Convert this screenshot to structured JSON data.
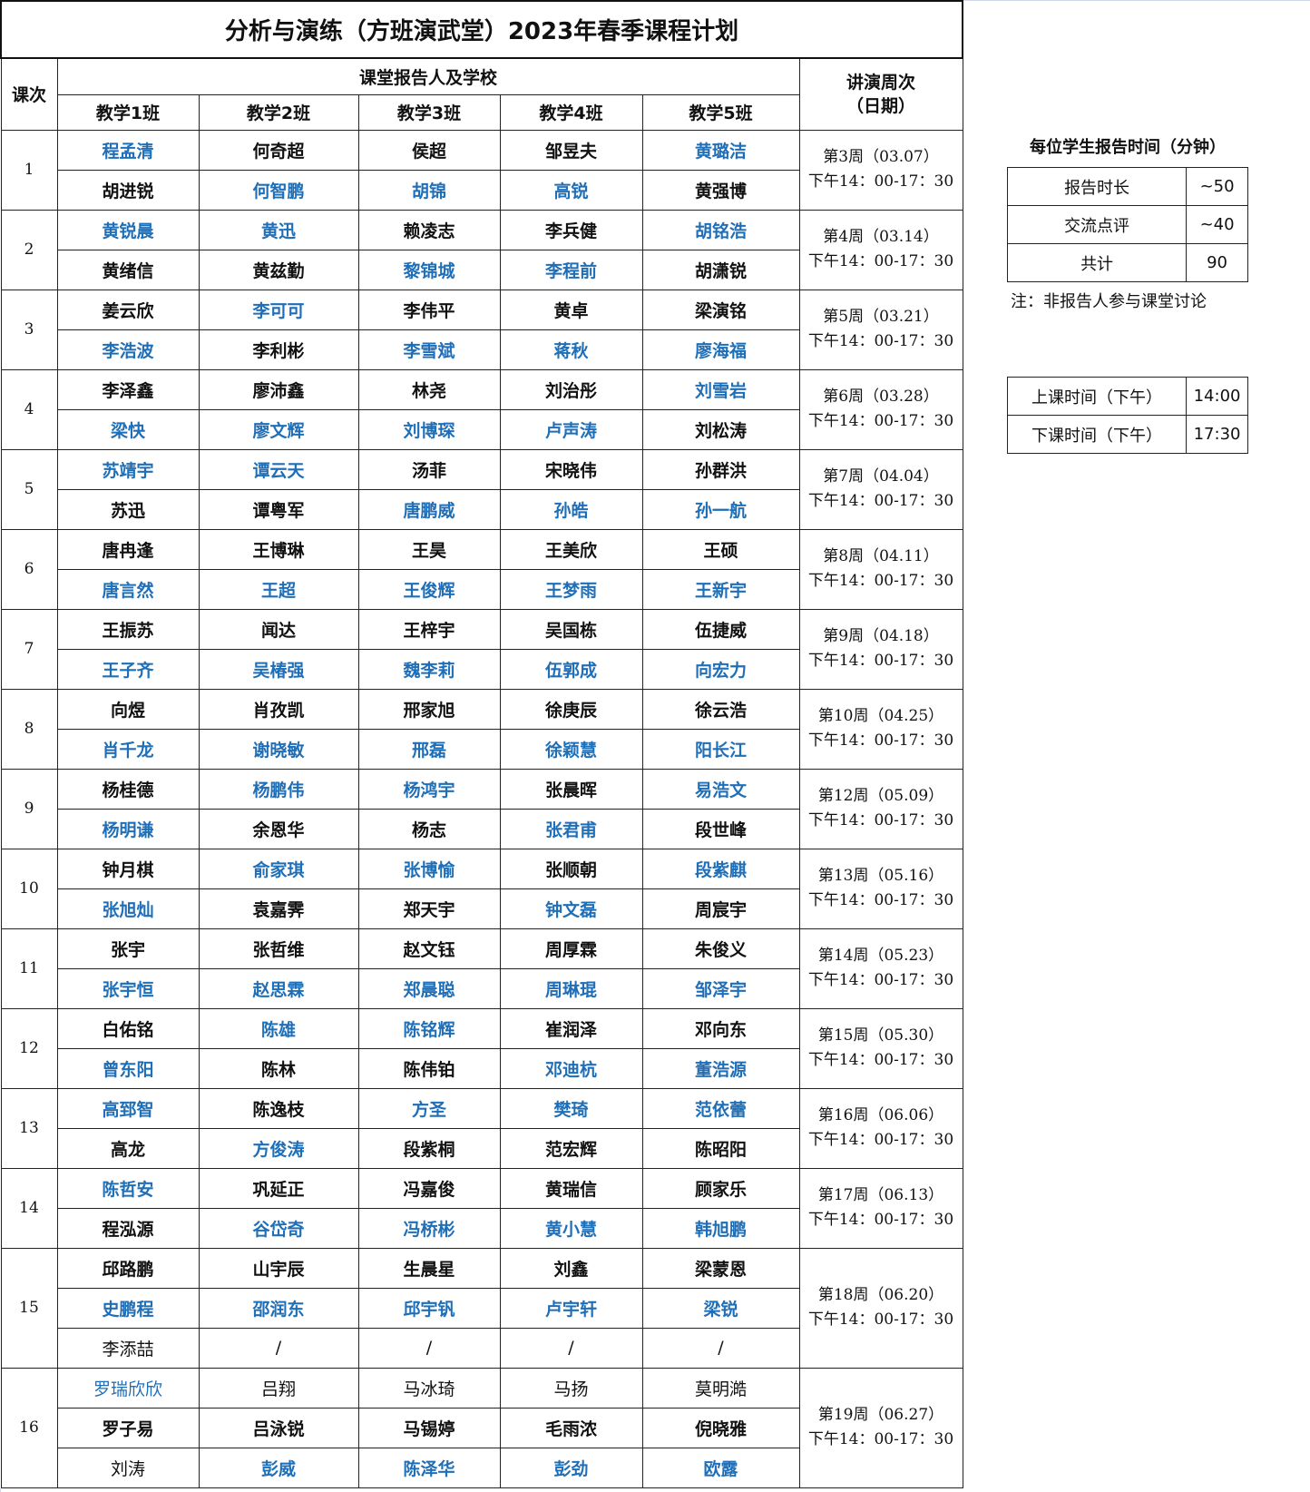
{
  "title": "分析与演练（方班演武堂）2023年春季课程计划",
  "headers": {
    "lesson": "课次",
    "reporters": "课堂报告人及学校",
    "week": "讲演周次\n（日期）",
    "classes": [
      "教学1班",
      "教学2班",
      "教学3班",
      "教学4班",
      "教学5班"
    ]
  },
  "colors": {
    "highlight": "#1f6fb8",
    "text": "#111111"
  },
  "lessons": [
    {
      "no": "1",
      "week": "第3周（03.07）",
      "time": "下午14：00-17：30",
      "rows": [
        [
          {
            "n": "程孟清",
            "c": "blue"
          },
          {
            "n": "何奇超"
          },
          {
            "n": "侯超"
          },
          {
            "n": "邹昱夫"
          },
          {
            "n": "黄璐洁",
            "c": "blue"
          }
        ],
        [
          {
            "n": "胡进锐"
          },
          {
            "n": "何智鹏",
            "c": "blue"
          },
          {
            "n": "胡锦",
            "c": "blue"
          },
          {
            "n": "高锐",
            "c": "blue"
          },
          {
            "n": "黄强博"
          }
        ]
      ]
    },
    {
      "no": "2",
      "week": "第4周（03.14）",
      "time": "下午14：00-17：30",
      "rows": [
        [
          {
            "n": "黄锐晨",
            "c": "blue"
          },
          {
            "n": "黄迅",
            "c": "blue"
          },
          {
            "n": "赖凌志"
          },
          {
            "n": "李兵健"
          },
          {
            "n": "胡铭浩",
            "c": "blue"
          }
        ],
        [
          {
            "n": "黄绪信"
          },
          {
            "n": "黄兹勤"
          },
          {
            "n": "黎锦城",
            "c": "blue"
          },
          {
            "n": "李程前",
            "c": "blue"
          },
          {
            "n": "胡潇锐"
          }
        ]
      ]
    },
    {
      "no": "3",
      "week": "第5周（03.21）",
      "time": "下午14：00-17：30",
      "rows": [
        [
          {
            "n": "姜云欣"
          },
          {
            "n": "李可可",
            "c": "blue"
          },
          {
            "n": "李伟平"
          },
          {
            "n": "黄卓"
          },
          {
            "n": "梁演铭"
          }
        ],
        [
          {
            "n": "李浩波",
            "c": "blue"
          },
          {
            "n": "李利彬"
          },
          {
            "n": "李雪斌",
            "c": "blue"
          },
          {
            "n": "蒋秋",
            "c": "blue"
          },
          {
            "n": "廖海福",
            "c": "blue"
          }
        ]
      ]
    },
    {
      "no": "4",
      "week": "第6周（03.28）",
      "time": "下午14：00-17：30",
      "rows": [
        [
          {
            "n": "李泽鑫"
          },
          {
            "n": "廖沛鑫"
          },
          {
            "n": "林尧"
          },
          {
            "n": "刘治彤"
          },
          {
            "n": "刘雪岩",
            "c": "blue"
          }
        ],
        [
          {
            "n": "梁快",
            "c": "blue"
          },
          {
            "n": "廖文辉",
            "c": "blue"
          },
          {
            "n": "刘博琛",
            "c": "blue"
          },
          {
            "n": "卢声涛",
            "c": "blue"
          },
          {
            "n": "刘松涛"
          }
        ]
      ]
    },
    {
      "no": "5",
      "week": "第7周（04.04）",
      "time": "下午14：00-17：30",
      "rows": [
        [
          {
            "n": "苏靖宇",
            "c": "blue"
          },
          {
            "n": "谭云天",
            "c": "blue"
          },
          {
            "n": "汤菲"
          },
          {
            "n": "宋晓伟"
          },
          {
            "n": "孙群洪"
          }
        ],
        [
          {
            "n": "苏迅"
          },
          {
            "n": "谭粤军"
          },
          {
            "n": "唐鹏威",
            "c": "blue"
          },
          {
            "n": "孙皓",
            "c": "blue"
          },
          {
            "n": "孙一航",
            "c": "blue"
          }
        ]
      ]
    },
    {
      "no": "6",
      "week": "第8周（04.11）",
      "time": "下午14：00-17：30",
      "rows": [
        [
          {
            "n": "唐冉逢"
          },
          {
            "n": "王博琳"
          },
          {
            "n": "王昊"
          },
          {
            "n": "王美欣"
          },
          {
            "n": "王硕"
          }
        ],
        [
          {
            "n": "唐言然",
            "c": "blue"
          },
          {
            "n": "王超",
            "c": "blue"
          },
          {
            "n": "王俊辉",
            "c": "blue"
          },
          {
            "n": "王梦雨",
            "c": "blue"
          },
          {
            "n": "王新宇",
            "c": "blue"
          }
        ]
      ]
    },
    {
      "no": "7",
      "week": "第9周（04.18）",
      "time": "下午14：00-17：30",
      "rows": [
        [
          {
            "n": "王振苏"
          },
          {
            "n": "闻达"
          },
          {
            "n": "王梓宇"
          },
          {
            "n": "吴国栋"
          },
          {
            "n": "伍捷威"
          }
        ],
        [
          {
            "n": "王子齐",
            "c": "blue"
          },
          {
            "n": "吴椿强",
            "c": "blue"
          },
          {
            "n": "魏李莉",
            "c": "blue"
          },
          {
            "n": "伍郭成",
            "c": "blue"
          },
          {
            "n": "向宏力",
            "c": "blue"
          }
        ]
      ]
    },
    {
      "no": "8",
      "week": "第10周（04.25）",
      "time": "下午14：00-17：30",
      "rows": [
        [
          {
            "n": "向煜"
          },
          {
            "n": "肖孜凯"
          },
          {
            "n": "邢家旭"
          },
          {
            "n": "徐庚辰"
          },
          {
            "n": "徐云浩"
          }
        ],
        [
          {
            "n": "肖千龙",
            "c": "blue"
          },
          {
            "n": "谢晓敏",
            "c": "blue"
          },
          {
            "n": "邢磊",
            "c": "blue"
          },
          {
            "n": "徐颖慧",
            "c": "blue"
          },
          {
            "n": "阳长江",
            "c": "blue"
          }
        ]
      ]
    },
    {
      "no": "9",
      "week": "第12周（05.09）",
      "time": "下午14：00-17：30",
      "rows": [
        [
          {
            "n": "杨桂德"
          },
          {
            "n": "杨鹏伟",
            "c": "blue"
          },
          {
            "n": "杨鸿宇",
            "c": "blue"
          },
          {
            "n": "张晨晖"
          },
          {
            "n": "易浩文",
            "c": "blue"
          }
        ],
        [
          {
            "n": "杨明谦",
            "c": "blue"
          },
          {
            "n": "余恩华"
          },
          {
            "n": "杨志"
          },
          {
            "n": "张君甫",
            "c": "blue"
          },
          {
            "n": "段世峰"
          }
        ]
      ]
    },
    {
      "no": "10",
      "week": "第13周（05.16）",
      "time": "下午14：00-17：30",
      "rows": [
        [
          {
            "n": "钟月棋"
          },
          {
            "n": "俞家琪",
            "c": "blue"
          },
          {
            "n": "张博愉",
            "c": "blue"
          },
          {
            "n": "张顺朝"
          },
          {
            "n": "段紫麒",
            "c": "blue"
          }
        ],
        [
          {
            "n": "张旭灿",
            "c": "blue"
          },
          {
            "n": "袁嘉霁"
          },
          {
            "n": "郑天宇"
          },
          {
            "n": "钟文磊",
            "c": "blue"
          },
          {
            "n": "周宸宇"
          }
        ]
      ]
    },
    {
      "no": "11",
      "week": "第14周（05.23）",
      "time": "下午14：00-17：30",
      "rows": [
        [
          {
            "n": "张宇"
          },
          {
            "n": "张哲维"
          },
          {
            "n": "赵文钰"
          },
          {
            "n": "周厚霖"
          },
          {
            "n": "朱俊义"
          }
        ],
        [
          {
            "n": "张宇恒",
            "c": "blue"
          },
          {
            "n": "赵思霖",
            "c": "blue"
          },
          {
            "n": "郑晨聪",
            "c": "blue"
          },
          {
            "n": "周琳琨",
            "c": "blue"
          },
          {
            "n": "邹泽宇",
            "c": "blue"
          }
        ]
      ]
    },
    {
      "no": "12",
      "week": "第15周（05.30）",
      "time": "下午14：00-17：30",
      "rows": [
        [
          {
            "n": "白佑铭"
          },
          {
            "n": "陈雄",
            "c": "blue"
          },
          {
            "n": "陈铭辉",
            "c": "blue"
          },
          {
            "n": "崔润泽"
          },
          {
            "n": "邓向东"
          }
        ],
        [
          {
            "n": "曾东阳",
            "c": "blue"
          },
          {
            "n": "陈林"
          },
          {
            "n": "陈伟铂"
          },
          {
            "n": "邓迪杭",
            "c": "blue"
          },
          {
            "n": "董浩源",
            "c": "blue"
          }
        ]
      ]
    },
    {
      "no": "13",
      "week": "第16周（06.06）",
      "time": "下午14：00-17：30",
      "rows": [
        [
          {
            "n": "高郅智",
            "c": "blue"
          },
          {
            "n": "陈逸枝"
          },
          {
            "n": "方圣",
            "c": "blue"
          },
          {
            "n": "樊琦",
            "c": "blue"
          },
          {
            "n": "范依蕾",
            "c": "blue"
          }
        ],
        [
          {
            "n": "高龙"
          },
          {
            "n": "方俊涛",
            "c": "blue"
          },
          {
            "n": "段紫桐"
          },
          {
            "n": "范宏辉"
          },
          {
            "n": "陈昭阳"
          }
        ]
      ]
    },
    {
      "no": "14",
      "week": "第17周（06.13）",
      "time": "下午14：00-17：30",
      "rows": [
        [
          {
            "n": "陈哲安",
            "c": "blue"
          },
          {
            "n": "巩延正"
          },
          {
            "n": "冯嘉俊"
          },
          {
            "n": "黄瑞信"
          },
          {
            "n": "顾家乐"
          }
        ],
        [
          {
            "n": "程泓源"
          },
          {
            "n": "谷岱奇",
            "c": "blue"
          },
          {
            "n": "冯桥彬",
            "c": "blue"
          },
          {
            "n": "黄小慧",
            "c": "blue"
          },
          {
            "n": "韩旭鹏",
            "c": "blue"
          }
        ]
      ]
    },
    {
      "no": "15",
      "week": "第18周（06.20）",
      "time": "下午14：00-17：30",
      "rows": [
        [
          {
            "n": "邱路鹏"
          },
          {
            "n": "山宇辰"
          },
          {
            "n": "生晨星"
          },
          {
            "n": "刘鑫"
          },
          {
            "n": "梁蒙恩"
          }
        ],
        [
          {
            "n": "史鹏程",
            "c": "blue"
          },
          {
            "n": "邵润东",
            "c": "blue"
          },
          {
            "n": "邱宇钒",
            "c": "blue"
          },
          {
            "n": "卢宇轩",
            "c": "blue"
          },
          {
            "n": "梁锐",
            "c": "blue"
          }
        ],
        [
          {
            "n": "李添喆",
            "w": "normal"
          },
          {
            "n": "/",
            "w": "normal"
          },
          {
            "n": "/",
            "w": "normal"
          },
          {
            "n": "/",
            "w": "normal"
          },
          {
            "n": "/",
            "w": "normal"
          }
        ]
      ]
    },
    {
      "no": "16",
      "week": "第19周（06.27）",
      "time": "下午14：00-17：30",
      "rows": [
        [
          {
            "n": "罗瑞欣欣",
            "c": "blue",
            "w": "normal"
          },
          {
            "n": "吕翔",
            "w": "normal"
          },
          {
            "n": "马冰琦",
            "w": "normal"
          },
          {
            "n": "马扬",
            "w": "normal"
          },
          {
            "n": "莫明澔",
            "w": "normal"
          }
        ],
        [
          {
            "n": "罗子易"
          },
          {
            "n": "吕泳锐"
          },
          {
            "n": "马锡婷"
          },
          {
            "n": "毛雨浓"
          },
          {
            "n": "倪晓雅"
          }
        ],
        [
          {
            "n": "刘涛",
            "w": "normal"
          },
          {
            "n": "彭威",
            "c": "blue"
          },
          {
            "n": "陈泽华",
            "c": "blue"
          },
          {
            "n": "彭劲",
            "c": "blue"
          },
          {
            "n": "欧露",
            "c": "blue"
          }
        ]
      ]
    }
  ],
  "side": {
    "time_title": "每位学生报告时间（分钟）",
    "time_rows": [
      {
        "label": "报告时长",
        "value": "~50"
      },
      {
        "label": "交流点评",
        "value": "~40"
      },
      {
        "label": "共计",
        "value": "90"
      }
    ],
    "note": "注：非报告人参与课堂讨论",
    "schedule_rows": [
      {
        "label": "上课时间（下午）",
        "value": "14:00"
      },
      {
        "label": "下课时间（下午）",
        "value": "17:30"
      }
    ]
  }
}
